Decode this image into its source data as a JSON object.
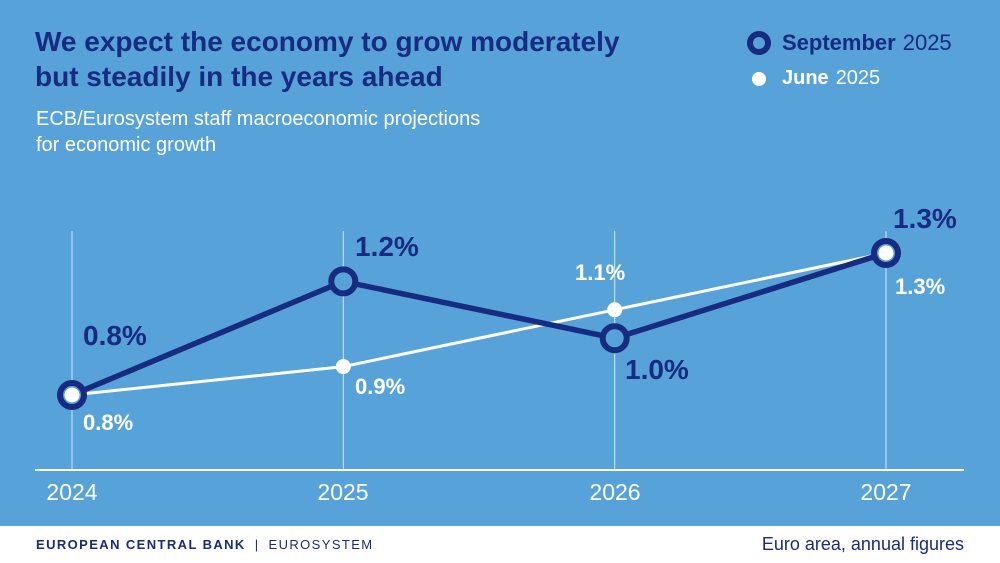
{
  "colors": {
    "background": "#57A2D9",
    "navy": "#172B80",
    "white": "#FFFFFF"
  },
  "header": {
    "title_line1": "We expect the economy to grow moderately",
    "title_line2": "but steadily in the years ahead",
    "subtitle_line1": "ECB/Eurosystem staff macroeconomic projections",
    "subtitle_line2": "for economic growth"
  },
  "legend": {
    "items": [
      {
        "name": "September",
        "year": "2025",
        "marker": "navy-ring"
      },
      {
        "name": "June",
        "year": "2025",
        "marker": "white-dot"
      }
    ]
  },
  "chart_data": {
    "type": "line",
    "title": "We expect the economy to grow moderately but steadily in the years ahead",
    "subtitle": "ECB/Eurosystem staff macroeconomic projections for economic growth",
    "categories": [
      "2024",
      "2025",
      "2026",
      "2027"
    ],
    "series": [
      {
        "name": "September 2025",
        "color": "#172B80",
        "marker": "ring",
        "values": [
          0.8,
          1.2,
          1.0,
          1.3
        ],
        "labels": [
          "0.8%",
          "1.2%",
          "1.0%",
          "1.3%"
        ]
      },
      {
        "name": "June 2025",
        "color": "#FFFFFF",
        "marker": "dot",
        "values": [
          0.8,
          0.9,
          1.1,
          1.3
        ],
        "labels": [
          "0.8%",
          "0.9%",
          "1.1%",
          "1.3%"
        ]
      }
    ],
    "unit": "%",
    "ylim": [
      0.6,
      1.45
    ],
    "grid": "vertical category lines with bottom baseline",
    "legend_position": "top-right",
    "note": "Euro area, annual figures"
  },
  "footer": {
    "brand_bold": "EUROPEAN CENTRAL BANK",
    "separator": "|",
    "brand_regular": "EUROSYSTEM",
    "note": "Euro area, annual figures"
  }
}
